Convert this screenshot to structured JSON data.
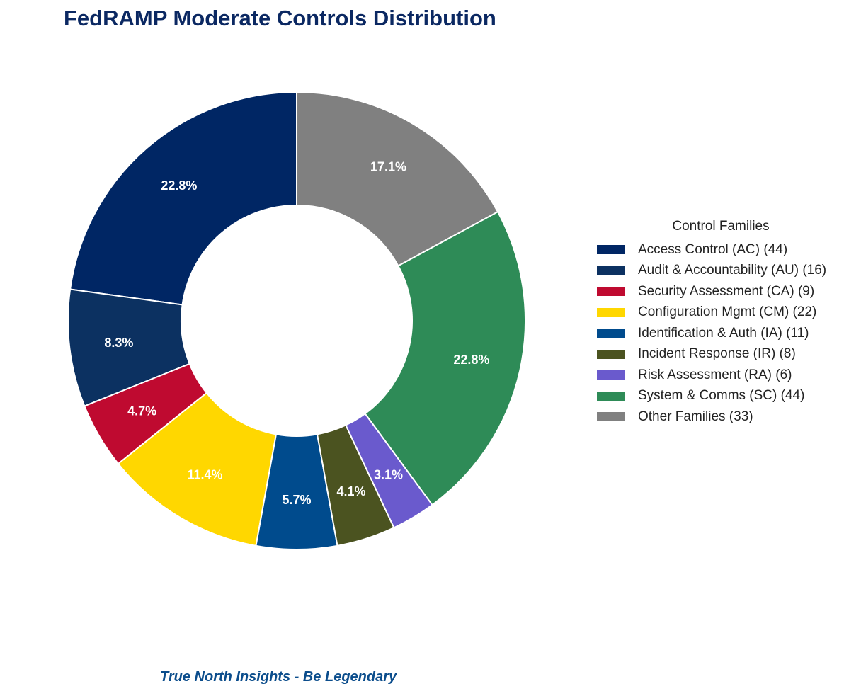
{
  "title": "FedRAMP Moderate Controls Distribution",
  "footer": "True North Insights - Be Legendary",
  "chart_data": {
    "type": "pie",
    "donut": true,
    "start_angle_deg": 90,
    "direction": "counterclockwise",
    "legend_title": "Control Families",
    "legend_position": "right",
    "slices": [
      {
        "label": "Access Control (AC) (44)",
        "value": 44,
        "pct_label": "22.8%",
        "color": "#002664"
      },
      {
        "label": "Audit & Accountability (AU) (16)",
        "value": 16,
        "pct_label": "8.3%",
        "color": "#0c3161"
      },
      {
        "label": "Security Assessment (CA) (9)",
        "value": 9,
        "pct_label": "4.7%",
        "color": "#bf0a30"
      },
      {
        "label": "Configuration Mgmt (CM) (22)",
        "value": 22,
        "pct_label": "11.4%",
        "color": "#ffd700"
      },
      {
        "label": "Identification & Auth (IA) (11)",
        "value": 11,
        "pct_label": "5.7%",
        "color": "#004b8d"
      },
      {
        "label": "Incident Response (IR) (8)",
        "value": 8,
        "pct_label": "4.1%",
        "color": "#4b5320"
      },
      {
        "label": "Risk Assessment (RA) (6)",
        "value": 6,
        "pct_label": "3.1%",
        "color": "#6a5acd"
      },
      {
        "label": "System & Comms (SC) (44)",
        "value": 44,
        "pct_label": "22.8%",
        "color": "#2e8b57"
      },
      {
        "label": "Other Families (33)",
        "value": 33,
        "pct_label": "17.1%",
        "color": "#808080"
      }
    ]
  }
}
